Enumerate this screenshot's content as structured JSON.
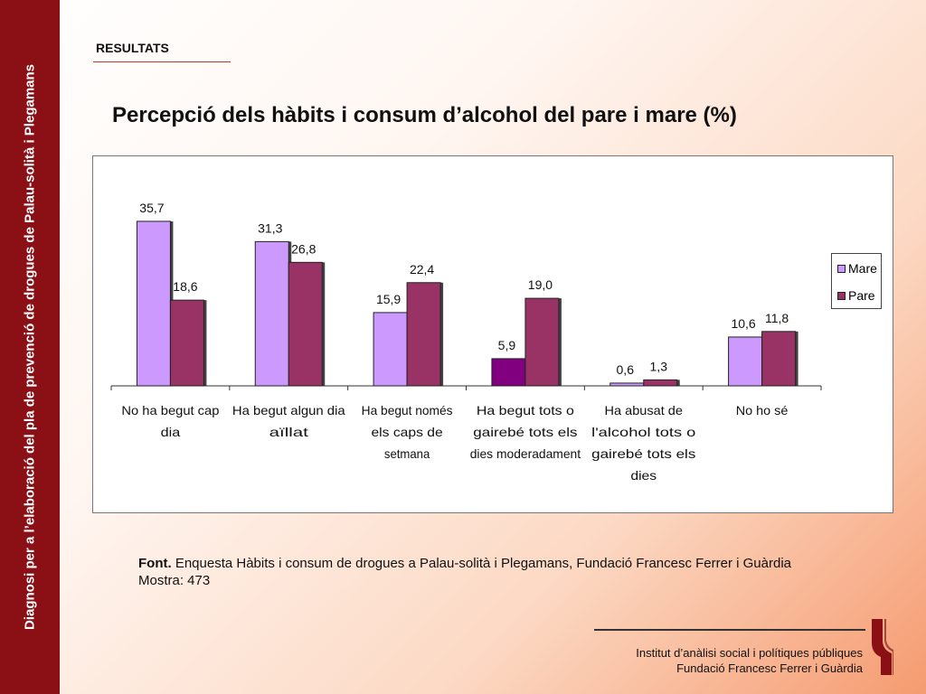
{
  "sidebar": {
    "text": "Diagnosi per a l’elaboració del pla de prevenció de drogues de Palau-solità i Plegamans"
  },
  "header": {
    "section": "RESULTATS",
    "title": "Percepció dels hàbits i consum d’alcohol del pare i mare (%)"
  },
  "source": {
    "label": "Font.",
    "text": "Enquesta Hàbits i consum de drogues a Palau-solità i Plegamans, Fundació Francesc Ferrer i Guàrdia",
    "sample": "Mostra: 473"
  },
  "footer": {
    "line1": "Institut d’anàlisi social i polítiques públiques",
    "line2": "Fundació Francesc Ferrer i Guàrdia"
  },
  "chart_data": {
    "type": "bar",
    "title": "Percepció dels hàbits i consum d’alcohol del pare i mare (%)",
    "categories": [
      [
        "No ha begut cap",
        "dia"
      ],
      [
        "Ha begut algun dia",
        "aïllat"
      ],
      [
        "Ha begut només",
        "els caps de",
        "setmana"
      ],
      [
        "Ha begut tots o",
        "gairebé tots els",
        "dies moderadament"
      ],
      [
        "Ha abusat de",
        "l'alcohol tots o",
        "gairebé tots els",
        "dies"
      ],
      [
        "No ho sé"
      ]
    ],
    "series": [
      {
        "name": "Mare",
        "values": [
          35.7,
          31.3,
          15.9,
          5.9,
          0.6,
          10.6
        ],
        "labels": [
          "35,7",
          "31,3",
          "15,9",
          "5,9",
          "0,6",
          "10,6"
        ]
      },
      {
        "name": "Pare",
        "values": [
          18.6,
          26.8,
          22.4,
          19.0,
          1.3,
          11.8
        ],
        "labels": [
          "18,6",
          "26,8",
          "22,4",
          "19,0",
          "1,3",
          "11,8"
        ]
      }
    ],
    "ylim": [
      0,
      40
    ],
    "legend": "right",
    "grid": false,
    "colors": {
      "Mare": "#cc99ff",
      "Pare": "#993366",
      "highlight": "#800080"
    }
  }
}
